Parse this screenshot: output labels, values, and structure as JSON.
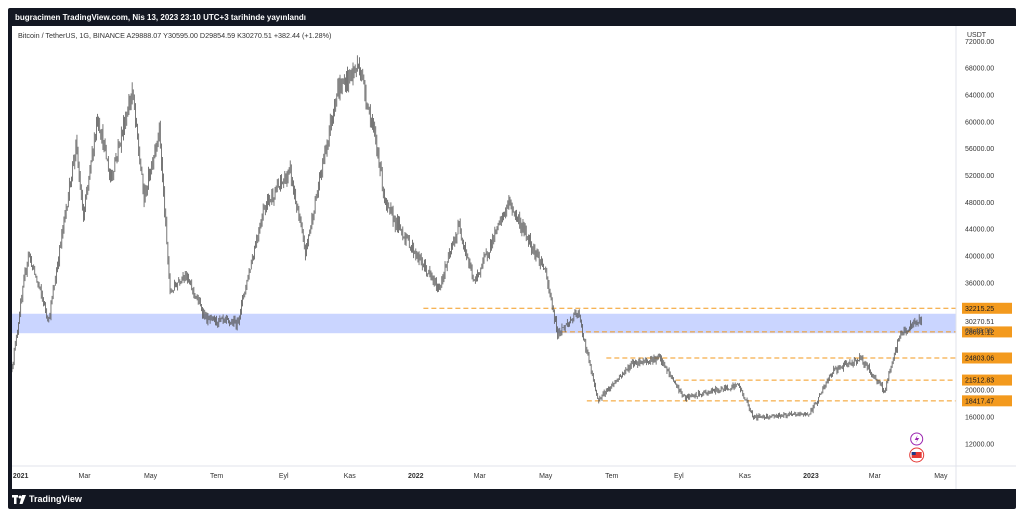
{
  "header": {
    "publish_line": "bugracimen TradingView.com, Nis 13, 2023 23:10 UTC+3 tarihinde yayınlandı"
  },
  "footer": {
    "brand": "TradingView",
    "brand_icon": "tradingview-logo-icon"
  },
  "chart_data": {
    "type": "candlestick",
    "title": "Bitcoin / TetherUS, 1G, BINANCE",
    "ohlc_readout": {
      "open_label": "A",
      "open": "29888.07",
      "high_label": "Y",
      "high": "30595.00",
      "low_label": "D",
      "low": "29854.59",
      "close_label": "K",
      "close": "30270.51",
      "change": "+382.44 (+1.28%)"
    },
    "y_axis": {
      "unit": "USDT",
      "ticks": [
        "72000.00",
        "68000.00",
        "64000.00",
        "60000.00",
        "56000.00",
        "52000.00",
        "48000.00",
        "44000.00",
        "40000.00",
        "36000.00",
        "20000.00",
        "16000.00",
        "12000.00"
      ],
      "tick_values": [
        72000,
        68000,
        64000,
        60000,
        56000,
        52000,
        48000,
        44000,
        40000,
        36000,
        20000,
        16000,
        12000
      ],
      "range": [
        9000,
        74000
      ]
    },
    "x_axis": {
      "ticks": [
        "2021",
        "Mar",
        "May",
        "Tem",
        "Eyl",
        "Kas",
        "2022",
        "Mar",
        "May",
        "Tem",
        "Eyl",
        "Kas",
        "2023",
        "Mar",
        "May"
      ],
      "tick_dates": [
        "2021-01-01",
        "2021-03-01",
        "2021-05-01",
        "2021-07-01",
        "2021-09-01",
        "2021-11-01",
        "2022-01-01",
        "2022-03-01",
        "2022-05-01",
        "2022-07-01",
        "2022-09-01",
        "2022-11-01",
        "2023-01-01",
        "2023-03-01",
        "2023-05-01"
      ],
      "bold_ticks": [
        "2021",
        "2022",
        "2023"
      ],
      "range": [
        "2020-12-24",
        "2023-05-15"
      ]
    },
    "price_series": [
      [
        "2020-12-24",
        23500
      ],
      [
        "2021-01-08",
        40500
      ],
      [
        "2021-01-27",
        30500
      ],
      [
        "2021-02-21",
        56500
      ],
      [
        "2021-02-28",
        45500
      ],
      [
        "2021-03-13",
        61000
      ],
      [
        "2021-03-25",
        51500
      ],
      [
        "2021-04-14",
        64500
      ],
      [
        "2021-04-25",
        48500
      ],
      [
        "2021-05-09",
        59000
      ],
      [
        "2021-05-19",
        34500
      ],
      [
        "2021-06-01",
        37500
      ],
      [
        "2021-06-22",
        30500
      ],
      [
        "2021-07-20",
        30000
      ],
      [
        "2021-08-14",
        47500
      ],
      [
        "2021-09-07",
        52500
      ],
      [
        "2021-09-21",
        40500
      ],
      [
        "2021-10-20",
        64500
      ],
      [
        "2021-11-10",
        68500
      ],
      [
        "2021-11-28",
        54500
      ],
      [
        "2021-12-04",
        47500
      ],
      [
        "2022-01-22",
        35000
      ],
      [
        "2022-02-10",
        44500
      ],
      [
        "2022-02-24",
        36000
      ],
      [
        "2022-03-28",
        48000
      ],
      [
        "2022-04-30",
        38000
      ],
      [
        "2022-05-12",
        28500
      ],
      [
        "2022-05-31",
        31500
      ],
      [
        "2022-06-18",
        18500
      ],
      [
        "2022-07-20",
        24000
      ],
      [
        "2022-08-14",
        24800
      ],
      [
        "2022-09-06",
        18800
      ],
      [
        "2022-10-26",
        20800
      ],
      [
        "2022-11-09",
        16000
      ],
      [
        "2022-12-31",
        16500
      ],
      [
        "2023-01-21",
        22800
      ],
      [
        "2023-02-16",
        24800
      ],
      [
        "2023-03-10",
        19800
      ],
      [
        "2023-03-24",
        28200
      ],
      [
        "2023-04-11",
        30400
      ],
      [
        "2023-04-13",
        30270.51
      ]
    ],
    "support_zone": {
      "low": 28500,
      "high": 31400,
      "color": "#c7d3ff"
    },
    "horizontal_levels": [
      {
        "value": 32215.25,
        "label": "32215.25",
        "start": "2022-01-08"
      },
      {
        "value": 24803.06,
        "label": "24803.06",
        "start": "2022-06-26"
      },
      {
        "value": 21512.83,
        "label": "21512.83",
        "start": "2022-08-29"
      },
      {
        "value": 18417.47,
        "label": "18417.47",
        "start": "2022-06-08"
      }
    ],
    "current_price": {
      "value": 30270.51,
      "label": "30270.51",
      "countdown": "03:49:06"
    },
    "marker_value": {
      "value": 28691.12,
      "label": "28691.12"
    },
    "level_color": "#f39a1e",
    "candle_color": "#555555",
    "icons": [
      "lightning-event-icon",
      "us-flag-event-icon"
    ]
  }
}
